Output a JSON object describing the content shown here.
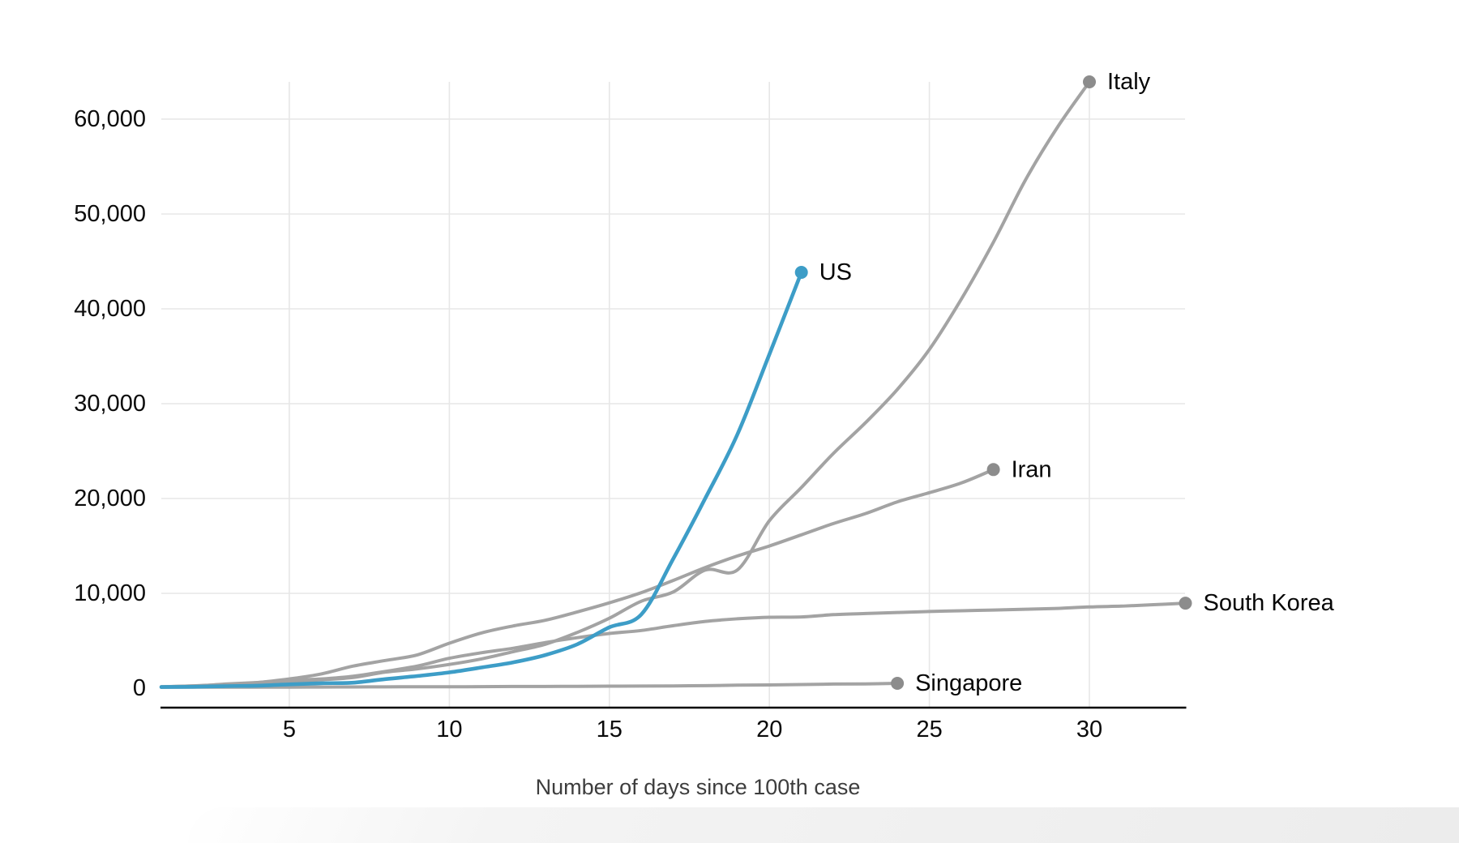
{
  "chart_data": {
    "type": "line",
    "title": "",
    "xlabel": "Number of days since 100th case",
    "x_domain": [
      1,
      33
    ],
    "x_ticks": [
      5,
      10,
      15,
      20,
      25,
      30
    ],
    "y_domain": [
      0,
      63927
    ],
    "y_ticks": [
      10000,
      20000,
      30000,
      40000,
      50000,
      60000
    ],
    "y_tick_labels": [
      "10,000",
      "20,000",
      "30,000",
      "40,000",
      "50,000",
      "60,000"
    ],
    "y_zero_label": "0",
    "grid": true,
    "legend_position": "end-of-line-labels",
    "series": [
      {
        "name": "Italy",
        "color": "#a3a3a3",
        "dot_color": "#8c8c8c",
        "highlighted": false,
        "start_day": 1,
        "values": [
          155,
          229,
          322,
          453,
          655,
          888,
          1128,
          1694,
          2036,
          2502,
          3089,
          3858,
          4636,
          5883,
          7375,
          9172,
          10149,
          12462,
          12462,
          17660,
          21157,
          24747,
          27980,
          31506,
          35713,
          41035,
          47021,
          53578,
          59138,
          63927
        ]
      },
      {
        "name": "Iran",
        "color": "#a3a3a3",
        "dot_color": "#8c8c8c",
        "highlighted": false,
        "start_day": 1,
        "values": [
          139,
          245,
          388,
          593,
          978,
          1501,
          2336,
          2922,
          3513,
          4747,
          5823,
          6566,
          7161,
          8042,
          9000,
          10075,
          11364,
          12729,
          13938,
          14991,
          16169,
          17361,
          18407,
          19644,
          20610,
          21638,
          23049
        ]
      },
      {
        "name": "South Korea",
        "color": "#a3a3a3",
        "dot_color": "#8c8c8c",
        "highlighted": false,
        "start_day": 1,
        "values": [
          104,
          204,
          433,
          602,
          833,
          977,
          1261,
          1766,
          2337,
          3150,
          3736,
          4212,
          4812,
          5328,
          5766,
          6088,
          6593,
          7041,
          7313,
          7478,
          7513,
          7755,
          7869,
          7979,
          8086,
          8162,
          8236,
          8320,
          8413,
          8565,
          8652,
          8799,
          8961
        ]
      },
      {
        "name": "Singapore",
        "color": "#a3a3a3",
        "dot_color": "#8c8c8c",
        "highlighted": false,
        "start_day": 1,
        "values": [
          102,
          106,
          108,
          110,
          110,
          117,
          130,
          138,
          150,
          150,
          160,
          178,
          178,
          200,
          212,
          226,
          243,
          266,
          313,
          345,
          385,
          432,
          455,
          509
        ]
      },
      {
        "name": "US",
        "color": "#3d9dc7",
        "dot_color": "#3d9dc7",
        "highlighted": true,
        "start_day": 1,
        "values": [
          118,
          149,
          217,
          262,
          402,
          518,
          583,
          959,
          1281,
          1663,
          2179,
          2726,
          3499,
          4632,
          6421,
          7783,
          13677,
          20030,
          26747,
          35206,
          43847
        ]
      }
    ]
  },
  "colors": {
    "background": "#ffffff",
    "grid": "#e7e7e7",
    "axis_line": "#000000",
    "tick_text": "#0b0b0b",
    "label_text": "#060606",
    "axis_title_text": "#3d3d3d",
    "highlight_blue": "#3d9dc7",
    "muted_gray": "#a3a3a3"
  }
}
